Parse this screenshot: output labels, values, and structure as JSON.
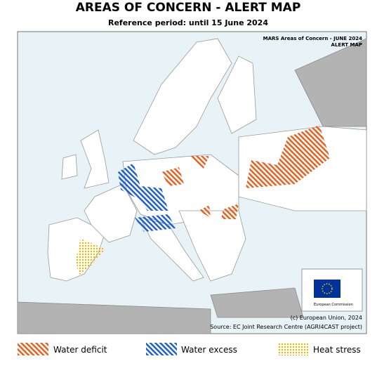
{
  "header": {
    "title": "AREAS OF CONCERN - ALERT MAP",
    "subtitle": "Reference period: until 15 June 2024"
  },
  "map": {
    "inset_title": "MARS Areas of Concern - JUNE 2024",
    "inset_subtitle": "ALERT MAP",
    "logo_text": "European Commission",
    "copyright": "(c) European Union, 2024",
    "source": "Source: EC Joint Research Centre (AGRI4CAST project)"
  },
  "legend": {
    "items": [
      "Water deficit",
      "Water excess",
      "Heat stress"
    ]
  }
}
